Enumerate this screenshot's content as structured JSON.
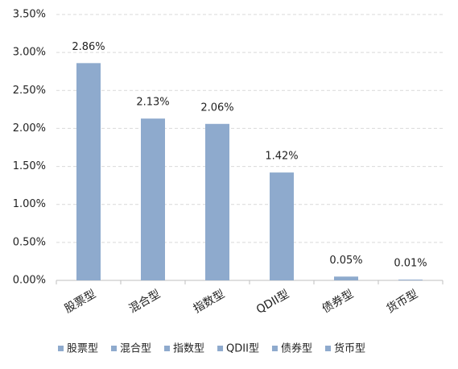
{
  "chart_data": {
    "type": "bar",
    "categories": [
      "股票型",
      "混合型",
      "指数型",
      "QDII型",
      "债券型",
      "货币型"
    ],
    "values": [
      2.86,
      2.13,
      2.06,
      1.42,
      0.05,
      0.01
    ],
    "value_labels": [
      "2.86%",
      "2.13%",
      "2.06%",
      "1.42%",
      "0.05%",
      "0.01%"
    ],
    "color": "#8eaacd",
    "ylim": [
      0,
      3.5
    ],
    "yticks": [
      {
        "value": 0,
        "label": "0.00%"
      },
      {
        "value": 0.5,
        "label": "0.50%"
      },
      {
        "value": 1,
        "label": "1.00%"
      },
      {
        "value": 1.5,
        "label": "1.50%"
      },
      {
        "value": 2,
        "label": "2.00%"
      },
      {
        "value": 2.5,
        "label": "2.50%"
      },
      {
        "value": 3,
        "label": "3.00%"
      },
      {
        "value": 3.5,
        "label": "3.50%"
      }
    ],
    "grid": true,
    "legend": "bottom"
  }
}
